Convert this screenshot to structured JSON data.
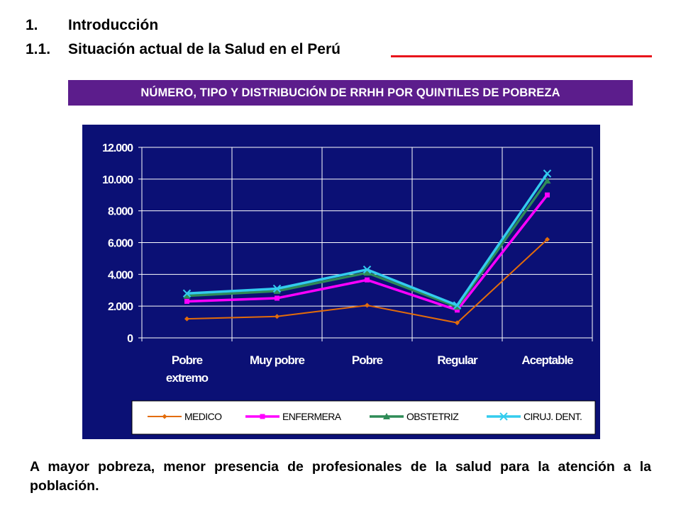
{
  "headings": {
    "h1_num": "1.",
    "h1_text": "Introducción",
    "h11_num": "1.1.",
    "h11_text": "Situación actual de la Salud en el Perú"
  },
  "banner": {
    "text": "NÚMERO, TIPO Y DISTRIBUCIÓN DE RRHH POR QUINTILES DE POBREZA"
  },
  "chart_data": {
    "type": "line",
    "categories": [
      "Pobre extremo",
      "Muy pobre",
      "Pobre",
      "Regular",
      "Aceptable"
    ],
    "category_lines": [
      [
        "Pobre",
        "extremo"
      ],
      [
        "Muy pobre"
      ],
      [
        "Pobre"
      ],
      [
        "Regular"
      ],
      [
        "Aceptable"
      ]
    ],
    "series": [
      {
        "name": "MEDICO",
        "values": [
          1200,
          1350,
          2050,
          950,
          6200
        ],
        "color": "#e36c0a",
        "marker": "diamond"
      },
      {
        "name": "ENFERMERA",
        "values": [
          2300,
          2500,
          3650,
          1750,
          9000
        ],
        "color": "#ff00ff",
        "marker": "square"
      },
      {
        "name": "OBSTETRIZ",
        "values": [
          2650,
          2950,
          4100,
          1950,
          9900
        ],
        "color": "#2e8b57",
        "marker": "triangle"
      },
      {
        "name": "CIRUJ. DENT.",
        "values": [
          2800,
          3100,
          4300,
          2050,
          10350
        ],
        "color": "#33ccee",
        "marker": "x"
      }
    ],
    "yticks": [
      "0",
      "2.000",
      "4.000",
      "6.000",
      "8.000",
      "10.000",
      "12.000"
    ],
    "ylim": [
      0,
      12000
    ],
    "grid": true,
    "legend_position": "bottom",
    "colors": {
      "plot_background": "#0b1075",
      "axis_text": "#ffffff",
      "legend_background": "#ffffff"
    }
  },
  "footer": {
    "text": "A mayor pobreza, menor presencia de profesionales de la salud para la atención a la población."
  }
}
